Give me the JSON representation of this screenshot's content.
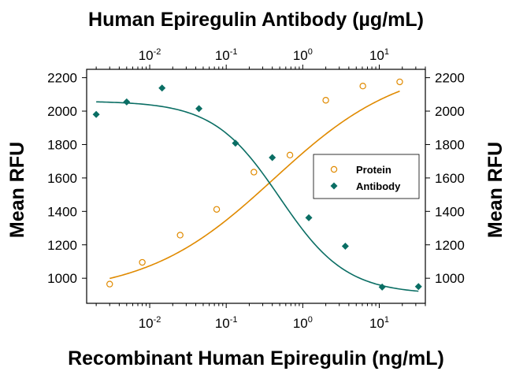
{
  "chart_data": {
    "type": "scatter",
    "title": "Human Epiregulin Antibody (µg/mL)",
    "xlabel": "Recombinant Human Epiregulin (ng/mL)",
    "ylabel": "Mean RFU",
    "ylabel_right": "Mean RFU",
    "x_scale": "log",
    "xlim": [
      0.0015,
      40
    ],
    "ylim": [
      850,
      2250
    ],
    "top_axis": {
      "scale": "log",
      "ticks": [
        {
          "value": 0.01,
          "base": "10",
          "exp": "-2"
        },
        {
          "value": 0.1,
          "base": "10",
          "exp": "-1"
        },
        {
          "value": 1,
          "base": "10",
          "exp": "0"
        },
        {
          "value": 10,
          "base": "10",
          "exp": "1"
        }
      ]
    },
    "bottom_axis": {
      "ticks": [
        {
          "value": 0.01,
          "base": "10",
          "exp": "-2"
        },
        {
          "value": 0.1,
          "base": "10",
          "exp": "-1"
        },
        {
          "value": 1,
          "base": "10",
          "exp": "0"
        },
        {
          "value": 10,
          "base": "10",
          "exp": "1"
        }
      ]
    },
    "y_ticks": [
      "1000",
      "1200",
      "1400",
      "1600",
      "1800",
      "2000",
      "2200"
    ],
    "legend": {
      "placement": "right"
    },
    "series": [
      {
        "name": "Protein",
        "marker": "open-circle",
        "color": "#e08a00",
        "points": [
          {
            "x": 0.003,
            "y": 965
          },
          {
            "x": 0.008,
            "y": 1095
          },
          {
            "x": 0.025,
            "y": 1258
          },
          {
            "x": 0.075,
            "y": 1412
          },
          {
            "x": 0.23,
            "y": 1635
          },
          {
            "x": 0.68,
            "y": 1737
          },
          {
            "x": 2.0,
            "y": 2065
          },
          {
            "x": 6.1,
            "y": 2150
          },
          {
            "x": 18.5,
            "y": 2175
          }
        ],
        "fit": {
          "bottom": 900,
          "top": 2290,
          "ec50": 0.42,
          "hill": 0.52
        }
      },
      {
        "name": "Antibody",
        "marker": "filled-diamond",
        "color": "#0a6e64",
        "points": [
          {
            "x": 0.002,
            "y": 1980
          },
          {
            "x": 0.005,
            "y": 2055
          },
          {
            "x": 0.0145,
            "y": 2138
          },
          {
            "x": 0.044,
            "y": 2015
          },
          {
            "x": 0.132,
            "y": 1808
          },
          {
            "x": 0.4,
            "y": 1722
          },
          {
            "x": 1.2,
            "y": 1362
          },
          {
            "x": 3.6,
            "y": 1192
          },
          {
            "x": 10.9,
            "y": 947
          },
          {
            "x": 32.5,
            "y": 950
          }
        ],
        "fit": {
          "bottom": 905,
          "top": 2060,
          "ec50": 0.5,
          "hill": 1.0
        }
      }
    ]
  }
}
